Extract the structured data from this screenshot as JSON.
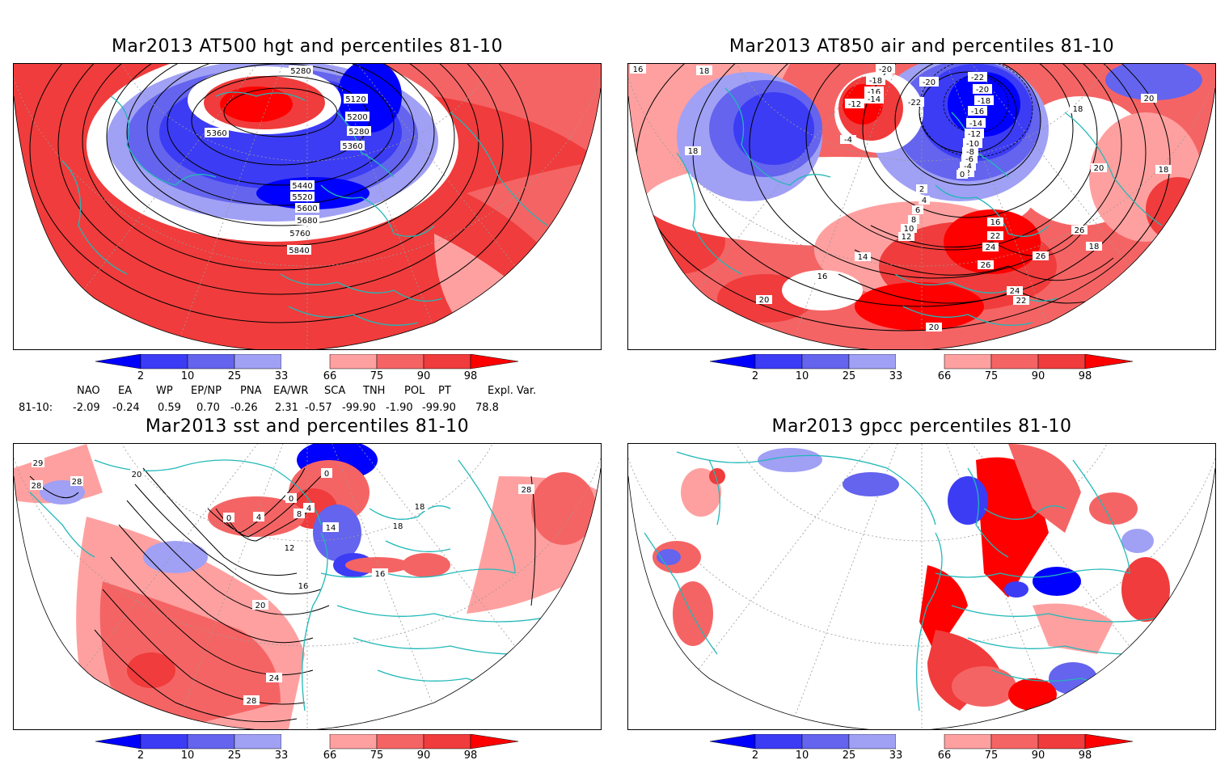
{
  "panels": [
    {
      "title": "Mar2013 AT500 hgt and percentiles 81-10",
      "contour_labels": [
        "5280",
        "5120",
        "5200",
        "5280",
        "5360",
        "5360",
        "5440",
        "5520",
        "5600",
        "5680",
        "5760",
        "5840"
      ]
    },
    {
      "title": "Mar2013 AT850 air and percentiles 81-10",
      "contour_labels": [
        "16",
        "18",
        "-20",
        "-18",
        "-16",
        "-14",
        "-12",
        "-22",
        "-20",
        "-22",
        "-20",
        "-18",
        "-16",
        "-14",
        "-12",
        "-10",
        "-8",
        "-6",
        "-4",
        "-2",
        "0",
        "2",
        "4",
        "6",
        "8",
        "10",
        "12",
        "14",
        "16",
        "18",
        "18",
        "18",
        "20",
        "20",
        "20",
        "-4",
        "16",
        "22",
        "24",
        "26",
        "26",
        "26",
        "24",
        "22",
        "20",
        "18"
      ]
    },
    {
      "title": "Mar2013 sst and percentiles 81-10",
      "contour_labels": [
        "29",
        "28",
        "28",
        "20",
        "0",
        "0",
        "4",
        "4",
        "8",
        "0",
        "12",
        "16",
        "20",
        "24",
        "28",
        "14",
        "16",
        "18",
        "18",
        "28"
      ]
    },
    {
      "title": "Mar2013 gpcc percentiles 81-10",
      "contour_labels": []
    }
  ],
  "colorbar": {
    "labels": [
      "2",
      "10",
      "25",
      "33",
      "66",
      "75",
      "90",
      "98"
    ],
    "colors": {
      "blue_dark": "#0000ff",
      "blue_2": "#3c3cf5",
      "blue_3": "#6464ee",
      "blue_4": "#a0a0f5",
      "white": "#ffffff",
      "red_1": "#ffa0a0",
      "red_2": "#f56464",
      "red_3": "#f03c3c",
      "red_dark": "#ff0000"
    }
  },
  "indices": {
    "headers": [
      "NAO",
      "EA",
      "WP",
      "EP/NP",
      "PNA",
      "EA/WR",
      "SCA",
      "TNH",
      "POL",
      "PT",
      "Expl. Var."
    ],
    "row_label": "81-10:",
    "values": [
      "-2.09",
      "-0.24",
      "0.59",
      "0.70",
      "-0.26",
      "2.31",
      "-0.57",
      "-99.90",
      "-1.90",
      "-99.90",
      "78.8"
    ]
  }
}
